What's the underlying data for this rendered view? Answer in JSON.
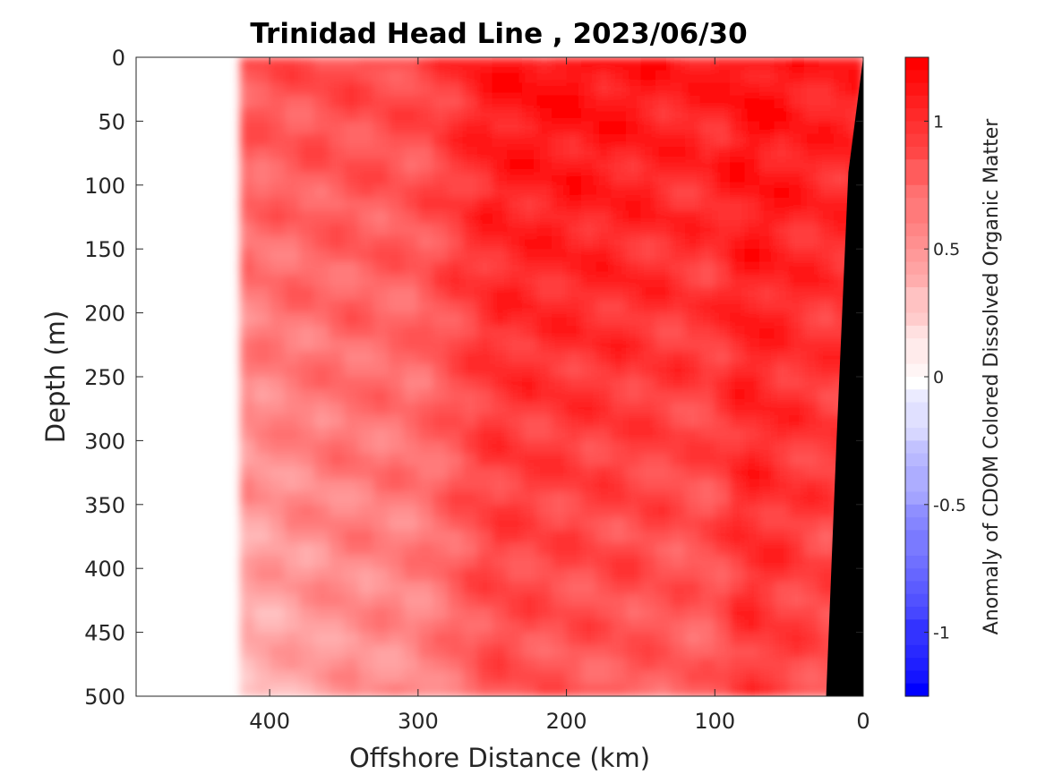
{
  "chart_data": {
    "type": "heatmap",
    "title": "Trinidad Head Line , 2023/06/30",
    "xlabel": "Offshore Distance (km)",
    "ylabel": "Depth (m)",
    "xlim": [
      490,
      0
    ],
    "ylim": [
      0,
      500
    ],
    "x_reversed": true,
    "y_reversed": true,
    "x_ticks": [
      400,
      300,
      200,
      100,
      0
    ],
    "x_tick_labels": [
      "400",
      "300",
      "200",
      "100",
      "0"
    ],
    "y_ticks": [
      0,
      50,
      100,
      150,
      200,
      250,
      300,
      350,
      400,
      450,
      500
    ],
    "y_tick_labels": [
      "0",
      "50",
      "100",
      "150",
      "200",
      "250",
      "300",
      "350",
      "400",
      "450",
      "500"
    ],
    "data_extent_x": [
      420,
      0
    ],
    "colorbar": {
      "label": "Anomaly of CDOM Colored Dissolved Organic Matter",
      "range": [
        -1.25,
        1.25
      ],
      "ticks": [
        1,
        0.5,
        0,
        -0.5,
        -1
      ],
      "tick_labels": [
        "1",
        "0.5",
        "0",
        "-0.5",
        "-1"
      ],
      "low_color": "#0000ff",
      "mid_color": "#ffffff",
      "high_color": "#ff0000"
    },
    "bottom_mask_color": "#000000",
    "bathymetry": [
      {
        "distance": 0,
        "depth": 0
      },
      {
        "distance": 10,
        "depth": 90
      },
      {
        "distance": 18,
        "depth": 300
      },
      {
        "distance": 25,
        "depth": 500
      }
    ],
    "field_description_columns": [
      {
        "distance": 410,
        "anomaly_surface": 0.85,
        "anomaly_deep": 0.35
      },
      {
        "distance": 350,
        "anomaly_surface": 0.9,
        "anomaly_deep": 0.5
      },
      {
        "distance": 300,
        "anomaly_surface": 0.9,
        "anomaly_deep": 0.55
      },
      {
        "distance": 250,
        "anomaly_surface": 1.15,
        "anomaly_deep": 0.85
      },
      {
        "distance": 200,
        "anomaly_surface": 1.2,
        "anomaly_deep": 0.8
      },
      {
        "distance": 150,
        "anomaly_surface": 1.15,
        "anomaly_deep": 0.8
      },
      {
        "distance": 100,
        "anomaly_surface": 1.1,
        "anomaly_deep": 0.75
      },
      {
        "distance": 80,
        "anomaly_surface": 1.2,
        "anomaly_deep": 1.0
      },
      {
        "distance": 50,
        "anomaly_surface": 1.15,
        "anomaly_deep": 0.9
      },
      {
        "distance": 25,
        "anomaly_surface": 1.1,
        "anomaly_deep": 0.85
      }
    ]
  }
}
